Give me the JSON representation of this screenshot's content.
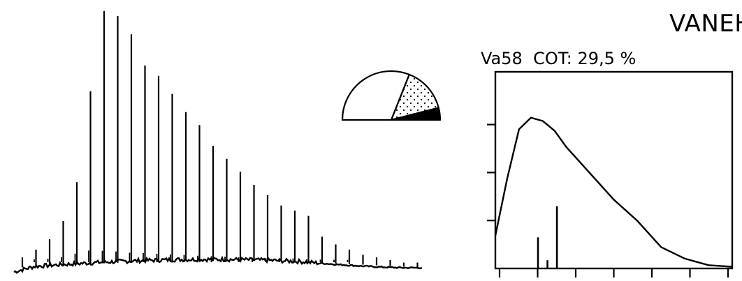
{
  "label": "VANEH",
  "sample": {
    "id": "Va58",
    "cot_label": "COT: 29,5 %"
  },
  "chart_data": [
    {
      "type": "line",
      "title": "",
      "xlabel": "",
      "ylabel": "",
      "description": "gas chromatogram, unlabeled axes; tallest peak normalized to 100",
      "peaks_relative_height": [
        4,
        7,
        11,
        18,
        33,
        68,
        99,
        97,
        90,
        78,
        74,
        67,
        60,
        55,
        47,
        42,
        37,
        32,
        28,
        24,
        22,
        20,
        12,
        9,
        7,
        5,
        4,
        3,
        2,
        2
      ],
      "color": "#000000"
    },
    {
      "type": "pie",
      "shape": "half",
      "slices": [
        {
          "label": "",
          "value": 62,
          "fill": "white"
        },
        {
          "label": "",
          "value": 30,
          "fill": "dotted"
        },
        {
          "label": "",
          "value": 8,
          "fill": "black"
        }
      ]
    },
    {
      "type": "line",
      "title": "Va58  COT: 29,5 %",
      "xlabel": "",
      "ylabel": "",
      "x": [
        0,
        0.5,
        1,
        1.5,
        2,
        2.5,
        3,
        4,
        5,
        6,
        7,
        8,
        9,
        10
      ],
      "y": [
        0.2,
        0.55,
        0.85,
        0.92,
        0.9,
        0.84,
        0.74,
        0.58,
        0.42,
        0.29,
        0.13,
        0.06,
        0.02,
        0.01
      ],
      "markers": [
        {
          "x": 1.8,
          "value": 0.19
        },
        {
          "x": 2.2,
          "value": 0.05
        },
        {
          "x": 2.6,
          "value": 0.38
        }
      ],
      "xlim": [
        0,
        10
      ],
      "ylim": [
        0,
        1.2
      ],
      "y_ticks": 3,
      "x_ticks": 7,
      "grid": false
    }
  ]
}
